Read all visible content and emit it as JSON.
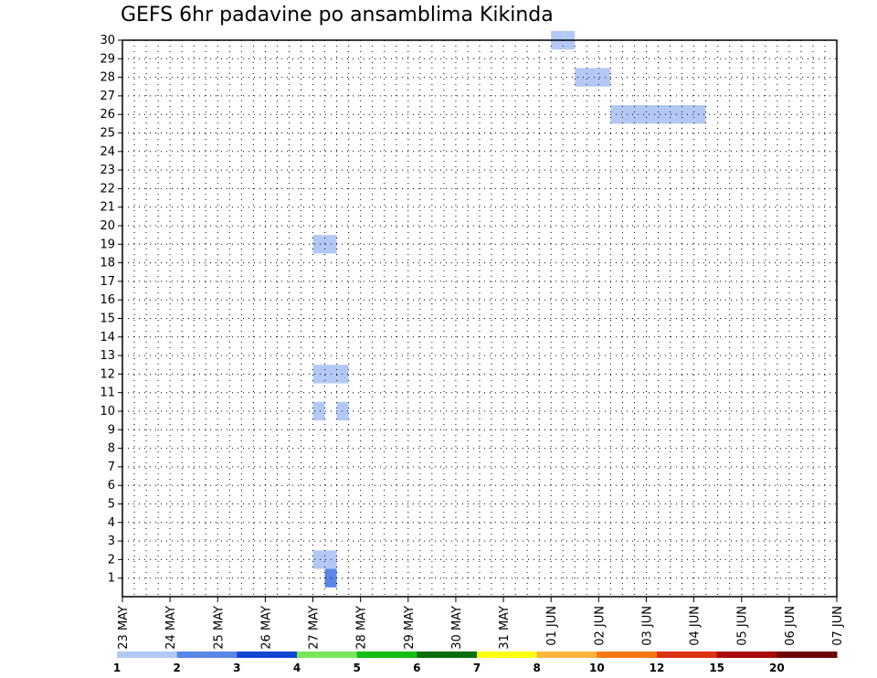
{
  "chart_data": {
    "type": "heatmap",
    "title": "GEFS 6hr padavine po ansamblima Kikinda",
    "xlabel": "",
    "ylabel": "",
    "x_ticks": [
      "23 MAY",
      "24 MAY",
      "25 MAY",
      "26 MAY",
      "27 MAY",
      "28 MAY",
      "29 MAY",
      "30 MAY",
      "31 MAY",
      "01 JUN",
      "02 JUN",
      "03 JUN",
      "04 JUN",
      "05 JUN",
      "06 JUN",
      "07 JUN"
    ],
    "y_ticks": [
      1,
      2,
      3,
      4,
      5,
      6,
      7,
      8,
      9,
      10,
      11,
      12,
      13,
      14,
      15,
      16,
      17,
      18,
      19,
      20,
      21,
      22,
      23,
      24,
      25,
      26,
      27,
      28,
      29,
      30
    ],
    "members": 30,
    "steps": 60,
    "step_hours": 6,
    "grid": true,
    "colorbar": {
      "levels": [
        "1",
        "2",
        "3",
        "4",
        "5",
        "6",
        "7",
        "8",
        "10",
        "12",
        "15",
        "20"
      ],
      "colors": [
        "#b4c8f5",
        "#5a87e6",
        "#1446d2",
        "#78e65a",
        "#14be14",
        "#0a6e0a",
        "#ffff14",
        "#ffb43c",
        "#f57814",
        "#dc3214",
        "#aa0a0a",
        "#6e0505"
      ]
    },
    "cells": [
      [
        30,
        36,
        1
      ],
      [
        30,
        37,
        1
      ],
      [
        2,
        17,
        1
      ],
      [
        1,
        17,
        2
      ],
      [
        2,
        16,
        1
      ],
      [
        19,
        16,
        1
      ],
      [
        19,
        17,
        1
      ],
      [
        28,
        38,
        1
      ],
      [
        28,
        39,
        1
      ],
      [
        28,
        40,
        1
      ],
      [
        26,
        41,
        1
      ],
      [
        26,
        42,
        1
      ],
      [
        26,
        43,
        1
      ],
      [
        26,
        44,
        1
      ],
      [
        26,
        45,
        1
      ],
      [
        26,
        46,
        1
      ],
      [
        26,
        47,
        1
      ],
      [
        26,
        48,
        1
      ],
      [
        12,
        16,
        1
      ],
      [
        12,
        17,
        1
      ],
      [
        12,
        18,
        1
      ],
      [
        10,
        16,
        1
      ],
      [
        10,
        18,
        1
      ]
    ]
  }
}
